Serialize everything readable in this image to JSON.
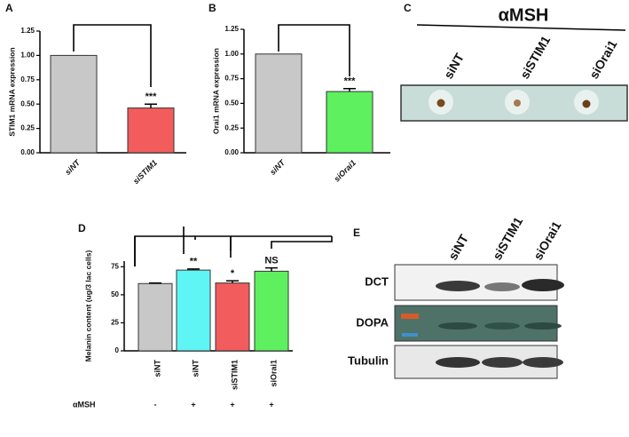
{
  "chart_data": [
    {
      "type": "bar",
      "panel_label": "A",
      "y_label": "STIM1 mRNA expression",
      "categories": [
        "siNT",
        "siSTIM1"
      ],
      "values": [
        1.0,
        0.46
      ],
      "errors": [
        null,
        0.04
      ],
      "colors": [
        "#c8c8c8",
        "#f25c5c"
      ],
      "annotations": [
        null,
        "***"
      ],
      "ylim": [
        0,
        1.25
      ],
      "yticks": [
        {
          "value": 0,
          "label": "0.00"
        },
        {
          "value": 0.25,
          "label": "0.25"
        },
        {
          "value": 0.5,
          "label": "0.50"
        },
        {
          "value": 0.75,
          "label": "0.75"
        },
        {
          "value": 1,
          "label": "1.00"
        },
        {
          "value": 1.25,
          "label": "1.25"
        }
      ]
    },
    {
      "type": "bar",
      "panel_label": "B",
      "y_label": "Orai1 mRNA expression",
      "categories": [
        "siNT",
        "siOrai1"
      ],
      "values": [
        1.0,
        0.62
      ],
      "errors": [
        null,
        0.03
      ],
      "colors": [
        "#c8c8c8",
        "#5ef05e"
      ],
      "annotations": [
        null,
        "***"
      ],
      "ylim": [
        0,
        1.25
      ],
      "yticks": [
        {
          "value": 0,
          "label": "0.00"
        },
        {
          "value": 0.25,
          "label": "0.25"
        },
        {
          "value": 0.5,
          "label": "0.50"
        },
        {
          "value": 0.75,
          "label": "0.75"
        },
        {
          "value": 1,
          "label": "1.00"
        },
        {
          "value": 1.25,
          "label": "1.25"
        }
      ]
    },
    {
      "type": "bar",
      "panel_label": "D",
      "y_label": "Melanin content (ug/3 lac cells)",
      "categories": [
        "siNT",
        "siNT",
        "siSTIM1",
        "siOrai1"
      ],
      "values": [
        60,
        72,
        60.5,
        71
      ],
      "errors": [
        0.5,
        1,
        2,
        3
      ],
      "colors": [
        "#c8c8c8",
        "#60f5f5",
        "#f25c5c",
        "#5ef05e"
      ],
      "annotations": [
        null,
        "**",
        "*",
        "NS"
      ],
      "treatment_label": "αMSH",
      "treatment": [
        "-",
        "+",
        "+",
        "+"
      ],
      "ylim": [
        0,
        80
      ],
      "yticks": [
        0,
        25,
        50,
        75
      ]
    }
  ],
  "photo": {
    "panel_label": "C",
    "title": "αMSH",
    "labels": [
      "siNT",
      "siSTIM1",
      "siOrai1"
    ]
  },
  "blot": {
    "panel_label": "E",
    "lanes": [
      "siNT",
      "siSTIM1",
      "siOrai1"
    ],
    "rows": [
      "DCT",
      "DOPA",
      "Tubulin"
    ]
  }
}
